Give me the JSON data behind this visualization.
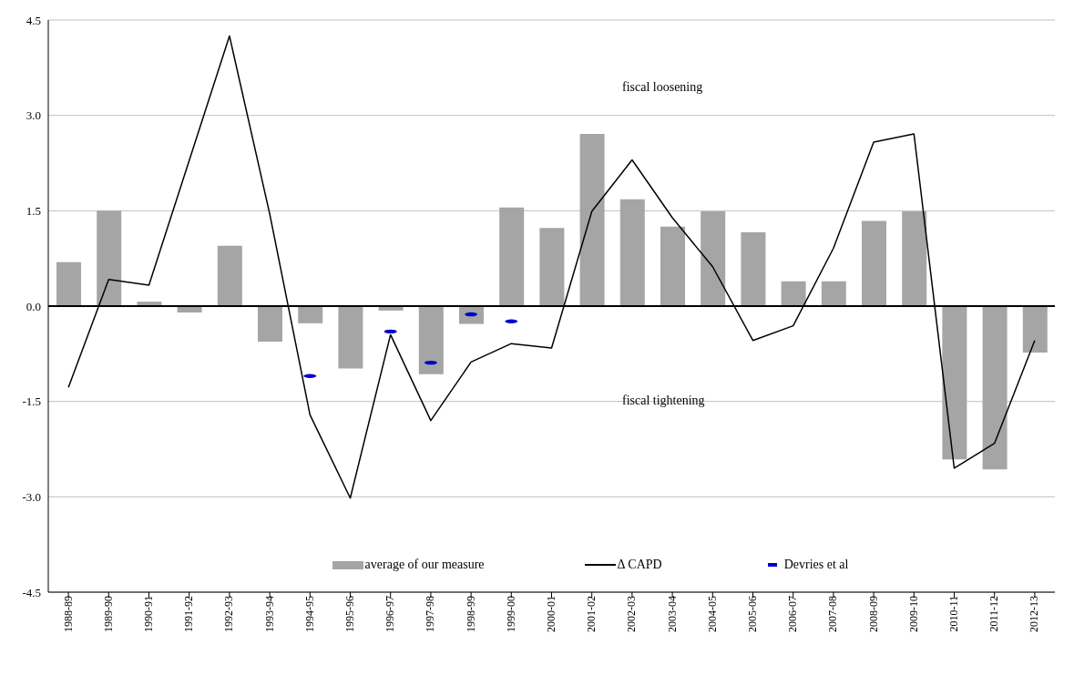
{
  "chart_data": {
    "type": "bar",
    "categories": [
      "1988-89",
      "1989-90",
      "1990-91",
      "1991-92",
      "1992-93",
      "1993-94",
      "1994-95",
      "1995-96",
      "1996-97",
      "1997-98",
      "1998-99",
      "1999-00",
      "2000-01",
      "2001-02",
      "2002-03",
      "2003-04",
      "2004-05",
      "2005-06",
      "2006-07",
      "2007-08",
      "2008-09",
      "2009-10",
      "2010-11",
      "2011-12",
      "2012-13"
    ],
    "series": [
      {
        "name": "average of our measure",
        "color": "#a5a5a5",
        "values": [
          0.69,
          1.5,
          0.07,
          -0.1,
          0.95,
          -0.56,
          -0.27,
          -0.98,
          -0.07,
          -1.07,
          -0.28,
          1.55,
          1.23,
          2.71,
          1.68,
          1.25,
          1.49,
          1.16,
          0.39,
          0.39,
          1.34,
          1.49,
          -2.41,
          -2.57,
          -0.73
        ]
      },
      {
        "name": "Δ CAPD",
        "type": "line",
        "color": "#000000",
        "values": [
          -1.28,
          0.42,
          0.33,
          2.29,
          4.25,
          1.45,
          -1.71,
          -3.02,
          -0.45,
          -1.8,
          -0.88,
          -0.59,
          -0.66,
          1.49,
          2.3,
          1.39,
          0.62,
          -0.54,
          -0.31,
          0.91,
          2.58,
          2.71,
          -2.55,
          -2.16,
          -0.54
        ]
      },
      {
        "name": "Devries et al",
        "type": "scatter",
        "color": "#0000cc",
        "x": [
          "1994-95",
          "1996-97",
          "1997-98",
          "1998-99",
          "1999-00"
        ],
        "values": [
          -1.1,
          -0.4,
          -0.89,
          -0.13,
          -0.24
        ]
      }
    ],
    "ylim": [
      -4.5,
      4.5
    ],
    "yticks": [
      {
        "value": -4.5,
        "label": "-4.5"
      },
      {
        "value": -3,
        "label": "-3.0"
      },
      {
        "value": -1.5,
        "label": "-1.5"
      },
      {
        "value": 0,
        "label": "0.0"
      },
      {
        "value": 1.5,
        "label": "1.5"
      },
      {
        "value": 3,
        "label": "3.0"
      },
      {
        "value": 4.5,
        "label": "4.5"
      }
    ],
    "ref_lines": [
      {
        "axis": "y",
        "value": 0,
        "color": "#000000"
      }
    ],
    "annotations": [
      "fiscal loosening",
      "fiscal tightening"
    ],
    "grid": "y",
    "legend": "bottom"
  }
}
